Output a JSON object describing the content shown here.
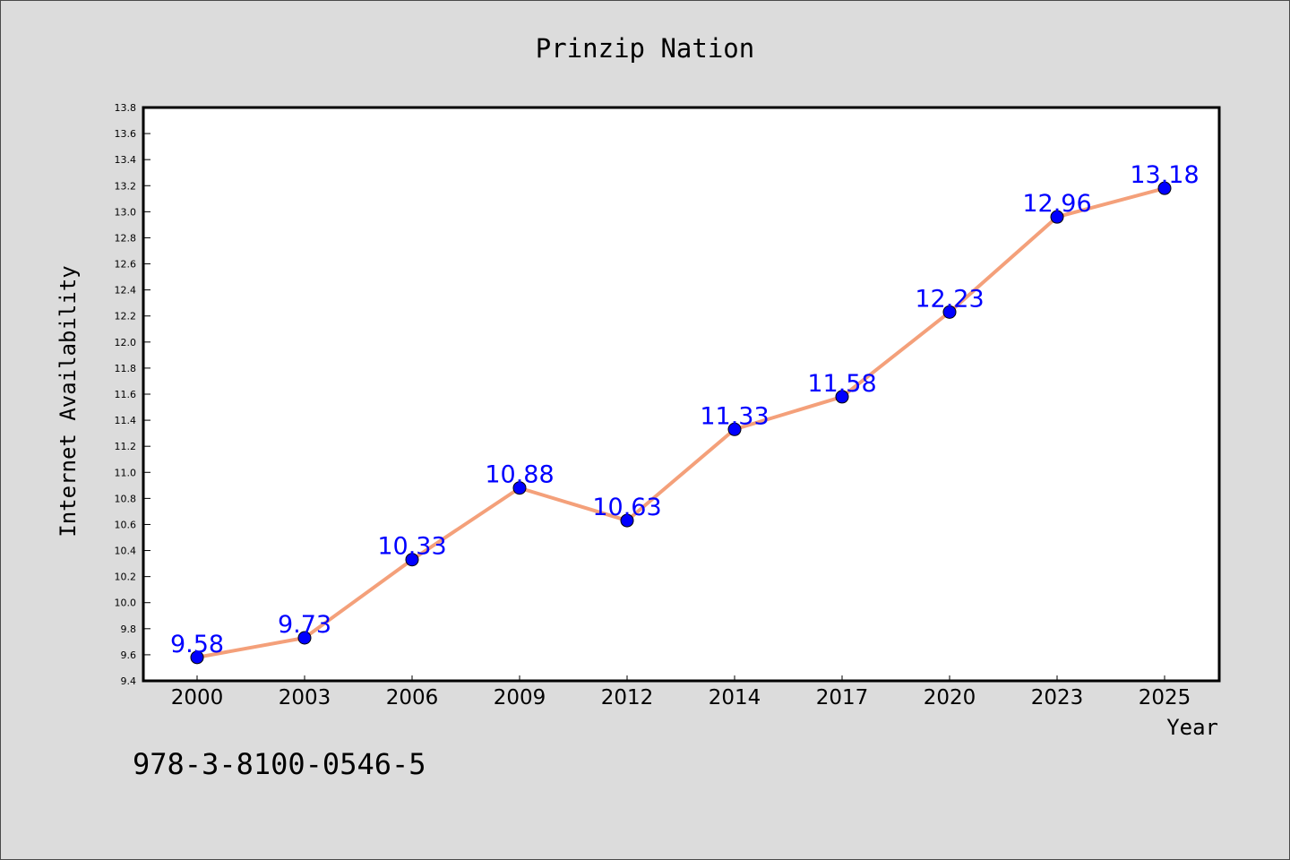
{
  "chart_data": {
    "type": "line",
    "title": "Prinzip Nation",
    "xlabel": "Year",
    "ylabel": "Internet Availability",
    "categories": [
      "2000",
      "2003",
      "2006",
      "2009",
      "2012",
      "2014",
      "2017",
      "2020",
      "2023",
      "2025"
    ],
    "values": [
      9.58,
      9.73,
      10.33,
      10.88,
      10.63,
      11.33,
      11.58,
      12.23,
      12.96,
      13.18
    ],
    "data_labels": [
      "9.58",
      "9.73",
      "10.33",
      "10.88",
      "10.63",
      "11.33",
      "11.58",
      "12.23",
      "12.96",
      "13.18"
    ],
    "ylim": [
      9.4,
      13.8
    ],
    "yticks": [
      "9.4",
      "9.6",
      "9.8",
      "10.0",
      "10.2",
      "10.4",
      "10.6",
      "10.8",
      "11.0",
      "11.2",
      "11.4",
      "11.6",
      "11.8",
      "12.0",
      "12.2",
      "12.4",
      "12.6",
      "12.8",
      "13.0",
      "13.2",
      "13.4",
      "13.6",
      "13.8"
    ],
    "grid": false,
    "colors": {
      "line": "#f4a07a",
      "marker": "#0000ff",
      "label": "#0000ff",
      "background": "#dcdcdc",
      "plot_bg": "#ffffff"
    }
  },
  "footer": {
    "isbn": "978-3-8100-0546-5"
  }
}
